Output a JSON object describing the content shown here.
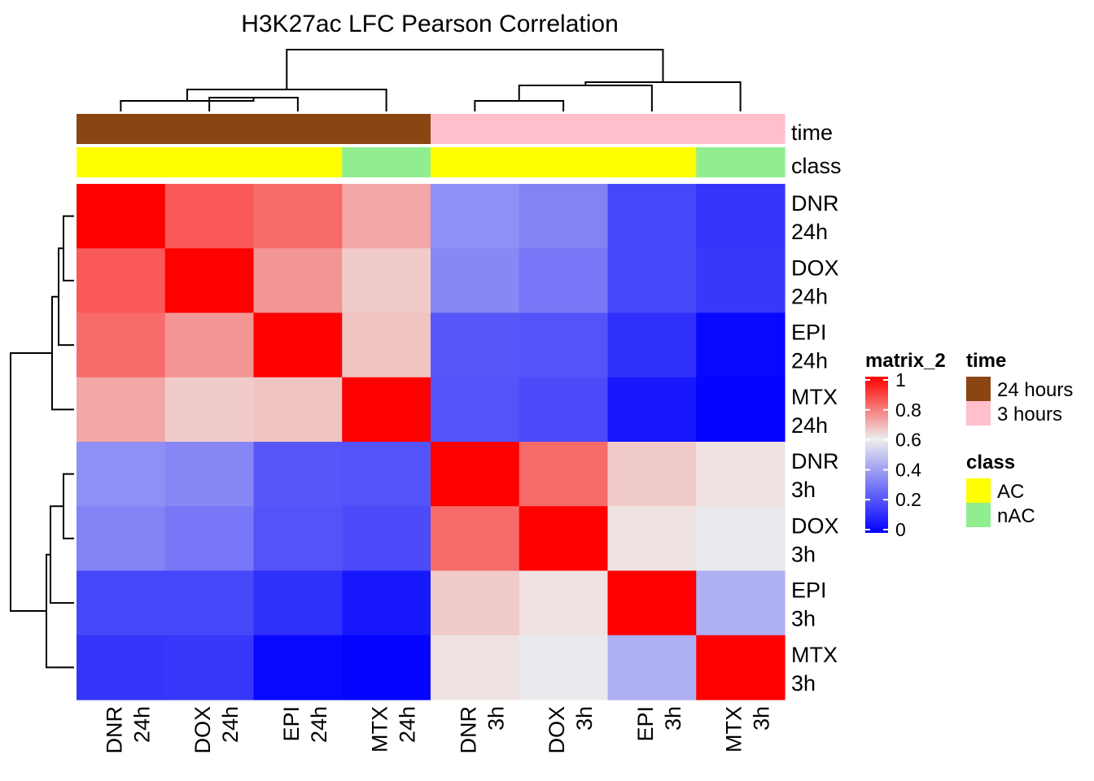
{
  "chart_data": {
    "type": "heatmap",
    "title": "H3K27ac LFC Pearson Correlation",
    "rows": [
      {
        "line1": "DNR",
        "line2": "24h"
      },
      {
        "line1": "DOX",
        "line2": "24h"
      },
      {
        "line1": "EPI",
        "line2": "24h"
      },
      {
        "line1": "MTX",
        "line2": "24h"
      },
      {
        "line1": "DNR",
        "line2": "3h"
      },
      {
        "line1": "DOX",
        "line2": "3h"
      },
      {
        "line1": "EPI",
        "line2": "3h"
      },
      {
        "line1": "MTX",
        "line2": "3h"
      }
    ],
    "columns": [
      {
        "line1": "DNR",
        "line2": "24h"
      },
      {
        "line1": "DOX",
        "line2": "24h"
      },
      {
        "line1": "EPI",
        "line2": "24h"
      },
      {
        "line1": "MTX",
        "line2": "24h"
      },
      {
        "line1": "DNR",
        "line2": "3h"
      },
      {
        "line1": "DOX",
        "line2": "3h"
      },
      {
        "line1": "EPI",
        "line2": "3h"
      },
      {
        "line1": "MTX",
        "line2": "3h"
      }
    ],
    "values": [
      [
        1.0,
        0.85,
        0.82,
        0.72,
        0.36,
        0.33,
        0.18,
        0.13
      ],
      [
        0.85,
        1.0,
        0.75,
        0.66,
        0.34,
        0.3,
        0.18,
        0.14
      ],
      [
        0.82,
        0.75,
        1.0,
        0.67,
        0.22,
        0.21,
        0.12,
        0.02
      ],
      [
        0.72,
        0.66,
        0.67,
        1.0,
        0.21,
        0.19,
        0.06,
        0.01
      ],
      [
        0.36,
        0.34,
        0.22,
        0.21,
        1.0,
        0.82,
        0.66,
        0.62
      ],
      [
        0.33,
        0.3,
        0.21,
        0.19,
        0.82,
        1.0,
        0.62,
        0.59
      ],
      [
        0.18,
        0.18,
        0.12,
        0.06,
        0.66,
        0.62,
        1.0,
        0.44
      ],
      [
        0.13,
        0.14,
        0.02,
        0.01,
        0.62,
        0.59,
        0.44,
        1.0
      ]
    ],
    "color_scale": {
      "name": "matrix_2",
      "stops": [
        {
          "value": 0,
          "color": "#0000ff"
        },
        {
          "value": 0.6,
          "color": "#eeeeee"
        },
        {
          "value": 1,
          "color": "#ff0000"
        }
      ],
      "ticks": [
        "0",
        "0.2",
        "0.4",
        "0.6",
        "0.8",
        "1"
      ]
    },
    "annotations": {
      "time": {
        "label": "time",
        "values": [
          "24 hours",
          "24 hours",
          "24 hours",
          "24 hours",
          "3 hours",
          "3 hours",
          "3 hours",
          "3 hours"
        ],
        "legend": [
          {
            "label": "24 hours",
            "color": "#8b4513"
          },
          {
            "label": "3 hours",
            "color": "#ffc0cb"
          }
        ]
      },
      "class": {
        "label": "class",
        "values": [
          "AC",
          "AC",
          "AC",
          "nAC",
          "AC",
          "AC",
          "AC",
          "nAC"
        ],
        "legend": [
          {
            "label": "AC",
            "color": "#ffff00"
          },
          {
            "label": "nAC",
            "color": "#90ee90"
          }
        ]
      }
    }
  }
}
